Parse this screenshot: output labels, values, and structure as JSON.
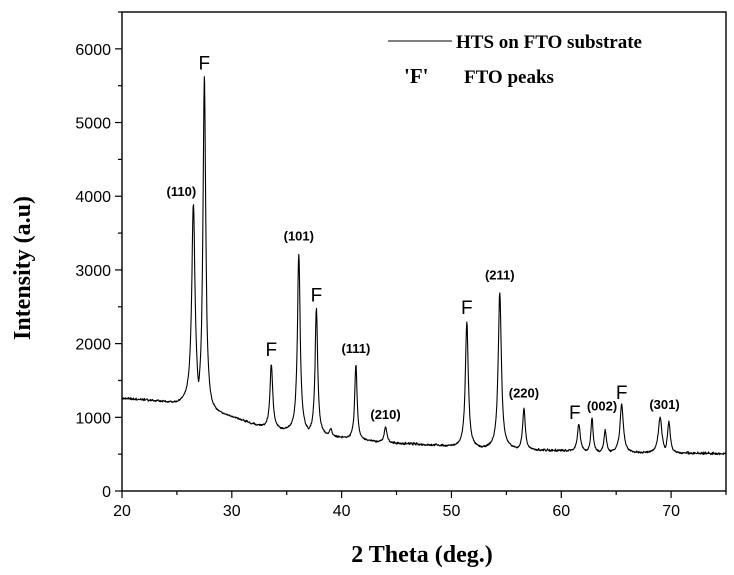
{
  "chart_data": {
    "type": "line",
    "title": "",
    "xlabel": "2 Theta (deg.)",
    "ylabel": "Intensity (a.u)",
    "xlim": [
      20,
      75
    ],
    "ylim": [
      0,
      6500
    ],
    "xticks": [
      20,
      30,
      40,
      50,
      60,
      70
    ],
    "yticks": [
      0,
      1000,
      2000,
      3000,
      4000,
      5000,
      6000
    ],
    "grid": false,
    "legend_placement": "top-right",
    "legend": [
      {
        "marker": "",
        "label": "HTS on FTO substrate"
      },
      {
        "marker": "'F'",
        "label": "FTO peaks"
      }
    ],
    "series": [
      {
        "name": "HTS on FTO substrate",
        "color": "#000000",
        "baseline": [
          [
            20,
            1250
          ],
          [
            22,
            1230
          ],
          [
            24,
            1200
          ],
          [
            25,
            1180
          ],
          [
            26,
            1200
          ],
          [
            28,
            1050
          ],
          [
            30,
            1000
          ],
          [
            32,
            900
          ],
          [
            33,
            860
          ],
          [
            35,
            820
          ],
          [
            38,
            760
          ],
          [
            40,
            720
          ],
          [
            42,
            680
          ],
          [
            45,
            640
          ],
          [
            48,
            620
          ],
          [
            50,
            600
          ],
          [
            52,
            580
          ],
          [
            55,
            570
          ],
          [
            58,
            550
          ],
          [
            60,
            540
          ],
          [
            65,
            520
          ],
          [
            70,
            510
          ],
          [
            75,
            500
          ]
        ],
        "peaks": [
          {
            "x": 26.5,
            "height": 3900,
            "width": 0.18
          },
          {
            "x": 27.5,
            "height": 5650,
            "width": 0.15
          },
          {
            "x": 33.6,
            "height": 1720,
            "width": 0.15
          },
          {
            "x": 36.1,
            "height": 3220,
            "width": 0.15
          },
          {
            "x": 37.7,
            "height": 2480,
            "width": 0.14
          },
          {
            "x": 39.0,
            "height": 850,
            "width": 0.15
          },
          {
            "x": 41.3,
            "height": 1720,
            "width": 0.13
          },
          {
            "x": 44.0,
            "height": 870,
            "width": 0.15
          },
          {
            "x": 51.4,
            "height": 2300,
            "width": 0.16
          },
          {
            "x": 54.4,
            "height": 2700,
            "width": 0.17
          },
          {
            "x": 56.6,
            "height": 1130,
            "width": 0.14
          },
          {
            "x": 61.6,
            "height": 910,
            "width": 0.16
          },
          {
            "x": 62.8,
            "height": 1000,
            "width": 0.12
          },
          {
            "x": 64.0,
            "height": 830,
            "width": 0.13
          },
          {
            "x": 65.5,
            "height": 1180,
            "width": 0.18
          },
          {
            "x": 69.0,
            "height": 1000,
            "width": 0.2
          },
          {
            "x": 69.8,
            "height": 950,
            "width": 0.15
          }
        ]
      }
    ],
    "annotations": [
      {
        "text": "(110)",
        "x": 26.5,
        "y": 4000,
        "style": "peak-label",
        "offset_x": -12
      },
      {
        "text": "F",
        "x": 27.5,
        "y": 5720,
        "style": "f-label",
        "offset_x": 0
      },
      {
        "text": "F",
        "x": 33.6,
        "y": 1830,
        "style": "f-label",
        "offset_x": 0
      },
      {
        "text": "(101)",
        "x": 36.1,
        "y": 3400,
        "style": "peak-label",
        "offset_x": 0
      },
      {
        "text": "F",
        "x": 37.7,
        "y": 2570,
        "style": "f-label",
        "offset_x": 0
      },
      {
        "text": "(111)",
        "x": 41.3,
        "y": 1870,
        "style": "peak-label",
        "offset_x": 0
      },
      {
        "text": "(210)",
        "x": 44.0,
        "y": 980,
        "style": "peak-label",
        "offset_x": 0
      },
      {
        "text": "F",
        "x": 51.4,
        "y": 2400,
        "style": "f-label",
        "offset_x": 0
      },
      {
        "text": "(211)",
        "x": 54.4,
        "y": 2870,
        "style": "peak-label",
        "offset_x": 0
      },
      {
        "text": "(220)",
        "x": 56.6,
        "y": 1270,
        "style": "peak-label",
        "offset_x": 0
      },
      {
        "text": "F",
        "x": 61.6,
        "y": 980,
        "style": "f-label",
        "offset_x": -4
      },
      {
        "text": "(002)",
        "x": 62.8,
        "y": 1090,
        "style": "peak-label",
        "offset_x": 10
      },
      {
        "text": "F",
        "x": 65.5,
        "y": 1250,
        "style": "f-label",
        "offset_x": 0
      },
      {
        "text": "(301)",
        "x": 69.4,
        "y": 1110,
        "style": "peak-label",
        "offset_x": 0
      }
    ]
  }
}
